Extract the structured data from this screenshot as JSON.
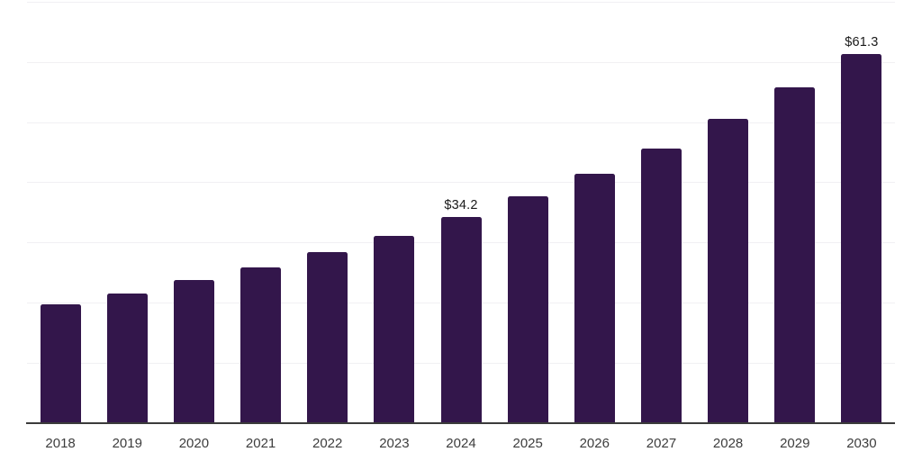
{
  "chart": {
    "background_color": "#ffffff",
    "bar_color": "#33164b",
    "grid_color": "#f1f0f3",
    "axis_color": "#3b3b3b",
    "tick_label_color": "#3d3d3d",
    "value_label_color": "#1a1a1a"
  },
  "chart_data": {
    "type": "bar",
    "title": "",
    "xlabel": "",
    "ylabel": "",
    "categories": [
      "2018",
      "2019",
      "2020",
      "2021",
      "2022",
      "2023",
      "2024",
      "2025",
      "2026",
      "2027",
      "2028",
      "2029",
      "2030"
    ],
    "values": [
      19.7,
      21.6,
      23.7,
      25.9,
      28.4,
      31.1,
      34.2,
      37.7,
      41.4,
      45.6,
      50.5,
      55.8,
      61.3
    ],
    "data_labels": {
      "2024": "$34.2",
      "2030": "$61.3"
    },
    "value_prefix": "$",
    "ylim": [
      0,
      70
    ],
    "grid_step": 10,
    "grid": "horizontal",
    "y_axis_ticks_visible": false,
    "legend_position": "none"
  }
}
